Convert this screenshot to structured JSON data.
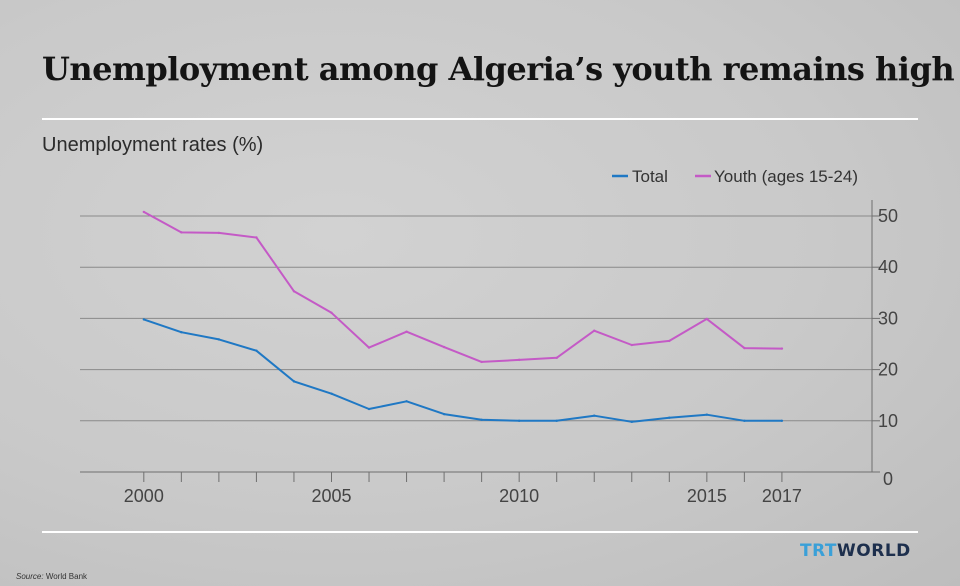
{
  "title": "Unemployment among Algeria’s youth remains high",
  "subtitle": "Unemployment rates (%)",
  "source": {
    "label": "Source:",
    "value": "World Bank"
  },
  "logo": {
    "part1": "TRT",
    "part2": "WORLD",
    "colors": [
      "#3aa0d8",
      "#1d2f4d"
    ]
  },
  "chart_data": {
    "type": "line",
    "title": "Unemployment among Algeria’s youth remains high",
    "ylabel": "Unemployment rates (%)",
    "xlabel": "",
    "x": [
      2000,
      2001,
      2002,
      2003,
      2004,
      2005,
      2006,
      2007,
      2008,
      2009,
      2010,
      2011,
      2012,
      2013,
      2014,
      2015,
      2016,
      2017
    ],
    "xlim": [
      1998.3,
      2019.4
    ],
    "ylim": [
      0,
      50
    ],
    "xticks": [
      2000,
      2005,
      2010,
      2015,
      2017
    ],
    "yticks": [
      0,
      10,
      20,
      30,
      40,
      50
    ],
    "grid": true,
    "y_axis_side": "right",
    "legend_position": "top-right",
    "series": [
      {
        "name": "Total",
        "color": "#1f78c4",
        "values": [
          29.8,
          27.3,
          25.9,
          23.7,
          17.7,
          15.3,
          12.3,
          13.8,
          11.3,
          10.2,
          10.0,
          10.0,
          11.0,
          9.8,
          10.6,
          11.2,
          10.0,
          10.0
        ]
      },
      {
        "name": "Youth (ages 15-24)",
        "color": "#c45ac6",
        "values": [
          50.8,
          46.8,
          46.7,
          45.8,
          35.3,
          31.1,
          24.3,
          27.4,
          24.4,
          21.5,
          21.9,
          22.3,
          27.6,
          24.8,
          25.6,
          29.9,
          24.2,
          24.1
        ]
      }
    ]
  }
}
